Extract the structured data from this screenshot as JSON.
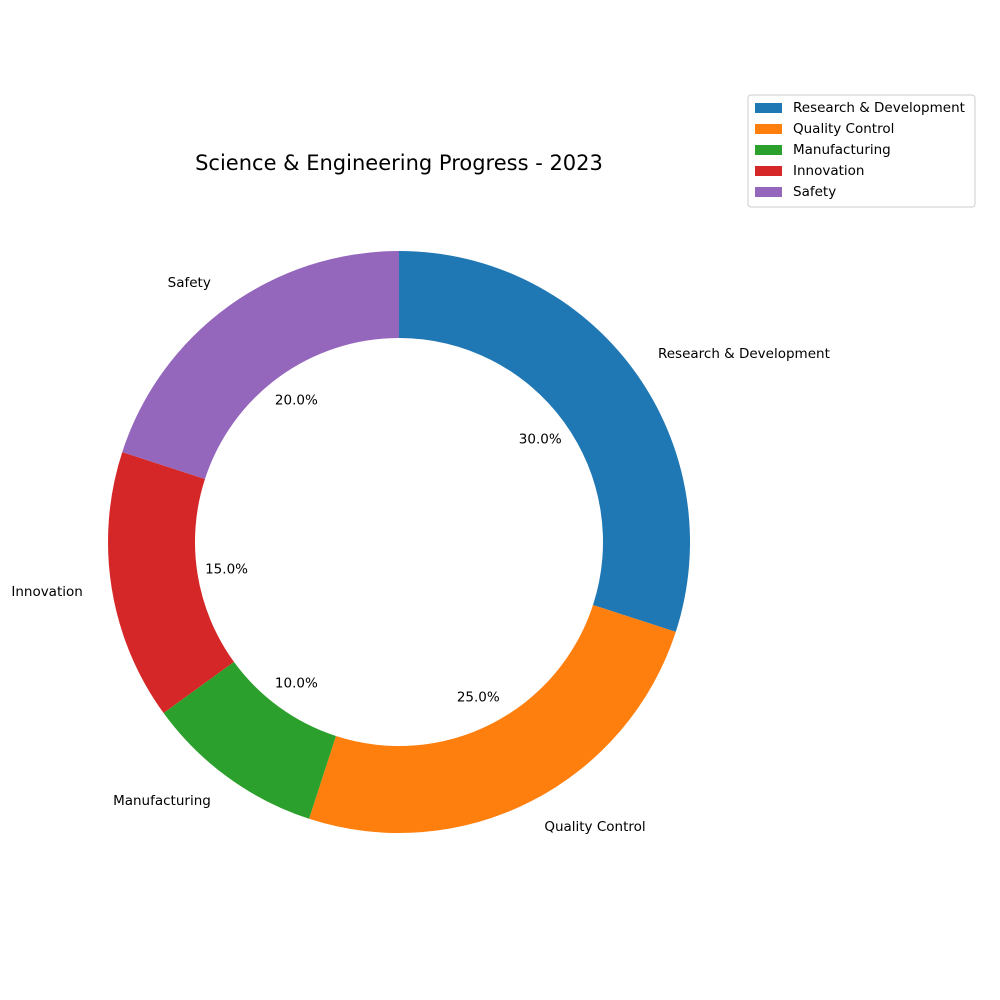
{
  "chart_data": {
    "type": "pie",
    "title": "Science & Engineering Progress - 2023",
    "donut": true,
    "start_angle_deg": 90,
    "direction": "clockwise",
    "label_format": "{pct}%",
    "categories": [
      "Research & Development",
      "Quality Control",
      "Manufacturing",
      "Innovation",
      "Safety"
    ],
    "values": [
      30.0,
      25.0,
      10.0,
      15.0,
      20.0
    ],
    "colors": [
      "#1f77b4",
      "#ff7f0e",
      "#2ca02c",
      "#d62728",
      "#9467bd"
    ],
    "legend": {
      "position": "top-right",
      "entries": [
        "Research & Development",
        "Quality Control",
        "Manufacturing",
        "Innovation",
        "Safety"
      ]
    }
  }
}
